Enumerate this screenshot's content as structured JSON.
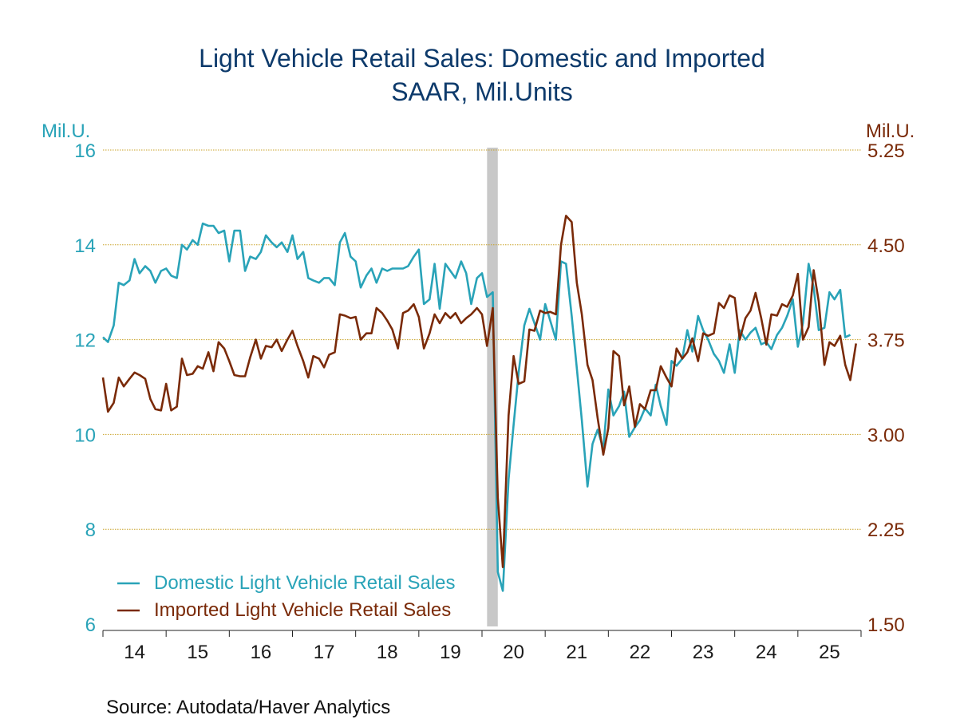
{
  "chart_data": {
    "type": "line",
    "title": "Light Vehicle Retail Sales: Domestic and Imported",
    "subtitle": "SAAR, Mil.Units",
    "left_axis": {
      "unit": "Mil.U.",
      "range": [
        6,
        16
      ],
      "ticks": [
        "6",
        "8",
        "10",
        "12",
        "14",
        "16"
      ]
    },
    "right_axis": {
      "unit": "Mil.U.",
      "range": [
        1.5,
        5.25
      ],
      "ticks": [
        "1.50",
        "2.25",
        "3.00",
        "3.75",
        "4.50",
        "5.25"
      ]
    },
    "x_axis": {
      "start": 2014,
      "end": 2026,
      "tick_labels": [
        "14",
        "15",
        "16",
        "17",
        "18",
        "19",
        "20",
        "21",
        "22",
        "23",
        "24",
        "25"
      ]
    },
    "grid": true,
    "recession_shading": [
      {
        "start": 2020.08,
        "end": 2020.25
      }
    ],
    "legend_position": "bottom-left",
    "series": [
      {
        "name": "Domestic Light Vehicle Retail Sales",
        "axis": "left",
        "color": "#29a3b8",
        "points": [
          [
            2014.0,
            12.05
          ],
          [
            2014.08,
            11.95
          ],
          [
            2014.17,
            12.3
          ],
          [
            2014.25,
            13.2
          ],
          [
            2014.33,
            13.15
          ],
          [
            2014.42,
            13.25
          ],
          [
            2014.5,
            13.7
          ],
          [
            2014.58,
            13.4
          ],
          [
            2014.67,
            13.55
          ],
          [
            2014.75,
            13.45
          ],
          [
            2014.83,
            13.2
          ],
          [
            2014.92,
            13.45
          ],
          [
            2015.0,
            13.5
          ],
          [
            2015.08,
            13.35
          ],
          [
            2015.17,
            13.3
          ],
          [
            2015.25,
            14.0
          ],
          [
            2015.33,
            13.9
          ],
          [
            2015.42,
            14.1
          ],
          [
            2015.5,
            14.0
          ],
          [
            2015.58,
            14.45
          ],
          [
            2015.67,
            14.4
          ],
          [
            2015.75,
            14.4
          ],
          [
            2015.83,
            14.25
          ],
          [
            2015.92,
            14.3
          ],
          [
            2016.0,
            13.65
          ],
          [
            2016.08,
            14.3
          ],
          [
            2016.17,
            14.3
          ],
          [
            2016.25,
            13.45
          ],
          [
            2016.33,
            13.75
          ],
          [
            2016.42,
            13.7
          ],
          [
            2016.5,
            13.85
          ],
          [
            2016.58,
            14.2
          ],
          [
            2016.67,
            14.05
          ],
          [
            2016.75,
            13.95
          ],
          [
            2016.83,
            14.05
          ],
          [
            2016.92,
            13.85
          ],
          [
            2017.0,
            14.2
          ],
          [
            2017.08,
            13.7
          ],
          [
            2017.17,
            13.85
          ],
          [
            2017.25,
            13.3
          ],
          [
            2017.33,
            13.25
          ],
          [
            2017.42,
            13.2
          ],
          [
            2017.5,
            13.3
          ],
          [
            2017.58,
            13.3
          ],
          [
            2017.67,
            13.15
          ],
          [
            2017.75,
            14.05
          ],
          [
            2017.83,
            14.25
          ],
          [
            2017.92,
            13.75
          ],
          [
            2018.0,
            13.65
          ],
          [
            2018.08,
            13.1
          ],
          [
            2018.17,
            13.35
          ],
          [
            2018.25,
            13.5
          ],
          [
            2018.33,
            13.2
          ],
          [
            2018.42,
            13.5
          ],
          [
            2018.5,
            13.45
          ],
          [
            2018.58,
            13.5
          ],
          [
            2018.67,
            13.5
          ],
          [
            2018.75,
            13.5
          ],
          [
            2018.83,
            13.55
          ],
          [
            2018.92,
            13.75
          ],
          [
            2019.0,
            13.9
          ],
          [
            2019.08,
            12.75
          ],
          [
            2019.17,
            12.85
          ],
          [
            2019.25,
            13.6
          ],
          [
            2019.33,
            12.65
          ],
          [
            2019.42,
            13.6
          ],
          [
            2019.5,
            13.45
          ],
          [
            2019.58,
            13.3
          ],
          [
            2019.67,
            13.65
          ],
          [
            2019.75,
            13.4
          ],
          [
            2019.83,
            12.75
          ],
          [
            2019.92,
            13.3
          ],
          [
            2020.0,
            13.4
          ],
          [
            2020.08,
            12.9
          ],
          [
            2020.17,
            13.0
          ],
          [
            2020.25,
            7.1
          ],
          [
            2020.33,
            6.7
          ],
          [
            2020.42,
            9.05
          ],
          [
            2020.5,
            10.2
          ],
          [
            2020.58,
            11.3
          ],
          [
            2020.67,
            12.3
          ],
          [
            2020.75,
            12.65
          ],
          [
            2020.83,
            12.35
          ],
          [
            2020.92,
            12.0
          ],
          [
            2021.0,
            12.75
          ],
          [
            2021.08,
            12.4
          ],
          [
            2021.17,
            12.0
          ],
          [
            2021.25,
            13.65
          ],
          [
            2021.33,
            13.6
          ],
          [
            2021.42,
            12.5
          ],
          [
            2021.5,
            11.4
          ],
          [
            2021.58,
            10.3
          ],
          [
            2021.67,
            8.9
          ],
          [
            2021.75,
            9.8
          ],
          [
            2021.83,
            10.1
          ],
          [
            2021.92,
            9.7
          ],
          [
            2022.0,
            10.95
          ],
          [
            2022.08,
            10.4
          ],
          [
            2022.17,
            10.6
          ],
          [
            2022.25,
            10.9
          ],
          [
            2022.33,
            9.95
          ],
          [
            2022.42,
            10.15
          ],
          [
            2022.5,
            10.3
          ],
          [
            2022.58,
            10.55
          ],
          [
            2022.67,
            10.4
          ],
          [
            2022.75,
            11.05
          ],
          [
            2022.83,
            10.6
          ],
          [
            2022.92,
            10.2
          ],
          [
            2023.0,
            11.55
          ],
          [
            2023.08,
            11.45
          ],
          [
            2023.17,
            11.6
          ],
          [
            2023.25,
            12.2
          ],
          [
            2023.33,
            11.75
          ],
          [
            2023.42,
            12.5
          ],
          [
            2023.5,
            12.2
          ],
          [
            2023.58,
            12.0
          ],
          [
            2023.67,
            11.7
          ],
          [
            2023.75,
            11.55
          ],
          [
            2023.83,
            11.3
          ],
          [
            2023.92,
            11.9
          ],
          [
            2024.0,
            11.3
          ],
          [
            2024.08,
            12.2
          ],
          [
            2024.17,
            12.0
          ],
          [
            2024.25,
            12.15
          ],
          [
            2024.33,
            12.25
          ],
          [
            2024.42,
            11.9
          ],
          [
            2024.5,
            11.95
          ],
          [
            2024.58,
            11.8
          ],
          [
            2024.67,
            12.1
          ],
          [
            2024.75,
            12.25
          ],
          [
            2024.83,
            12.5
          ],
          [
            2024.92,
            12.85
          ],
          [
            2025.0,
            11.85
          ],
          [
            2025.08,
            12.35
          ],
          [
            2025.17,
            13.6
          ],
          [
            2025.25,
            13.1
          ],
          [
            2025.33,
            12.2
          ],
          [
            2025.42,
            12.25
          ],
          [
            2025.5,
            13.0
          ],
          [
            2025.58,
            12.85
          ],
          [
            2025.67,
            13.05
          ],
          [
            2025.75,
            12.05
          ],
          [
            2025.83,
            12.1
          ]
        ]
      },
      {
        "name": "Imported Light Vehicle Retail Sales",
        "axis": "right",
        "color": "#7a2a08",
        "points": [
          [
            2014.0,
            3.45
          ],
          [
            2014.08,
            3.18
          ],
          [
            2014.17,
            3.25
          ],
          [
            2014.25,
            3.45
          ],
          [
            2014.33,
            3.38
          ],
          [
            2014.42,
            3.44
          ],
          [
            2014.5,
            3.49
          ],
          [
            2014.58,
            3.47
          ],
          [
            2014.67,
            3.44
          ],
          [
            2014.75,
            3.28
          ],
          [
            2014.83,
            3.2
          ],
          [
            2014.92,
            3.19
          ],
          [
            2015.0,
            3.4
          ],
          [
            2015.08,
            3.19
          ],
          [
            2015.17,
            3.22
          ],
          [
            2015.25,
            3.6
          ],
          [
            2015.33,
            3.47
          ],
          [
            2015.42,
            3.48
          ],
          [
            2015.5,
            3.54
          ],
          [
            2015.58,
            3.52
          ],
          [
            2015.67,
            3.65
          ],
          [
            2015.75,
            3.5
          ],
          [
            2015.83,
            3.73
          ],
          [
            2015.92,
            3.68
          ],
          [
            2016.0,
            3.58
          ],
          [
            2016.08,
            3.47
          ],
          [
            2016.17,
            3.46
          ],
          [
            2016.25,
            3.46
          ],
          [
            2016.33,
            3.61
          ],
          [
            2016.42,
            3.75
          ],
          [
            2016.5,
            3.6
          ],
          [
            2016.58,
            3.7
          ],
          [
            2016.67,
            3.69
          ],
          [
            2016.75,
            3.75
          ],
          [
            2016.83,
            3.66
          ],
          [
            2016.92,
            3.75
          ],
          [
            2017.0,
            3.82
          ],
          [
            2017.08,
            3.7
          ],
          [
            2017.17,
            3.58
          ],
          [
            2017.25,
            3.45
          ],
          [
            2017.33,
            3.62
          ],
          [
            2017.42,
            3.6
          ],
          [
            2017.5,
            3.53
          ],
          [
            2017.58,
            3.63
          ],
          [
            2017.67,
            3.65
          ],
          [
            2017.75,
            3.95
          ],
          [
            2017.83,
            3.94
          ],
          [
            2017.92,
            3.92
          ],
          [
            2018.0,
            3.93
          ],
          [
            2018.08,
            3.75
          ],
          [
            2018.17,
            3.8
          ],
          [
            2018.25,
            3.8
          ],
          [
            2018.33,
            4.0
          ],
          [
            2018.42,
            3.96
          ],
          [
            2018.5,
            3.9
          ],
          [
            2018.58,
            3.83
          ],
          [
            2018.67,
            3.68
          ],
          [
            2018.75,
            3.96
          ],
          [
            2018.83,
            3.98
          ],
          [
            2018.92,
            4.03
          ],
          [
            2019.0,
            3.93
          ],
          [
            2019.08,
            3.68
          ],
          [
            2019.17,
            3.8
          ],
          [
            2019.25,
            3.95
          ],
          [
            2019.33,
            3.88
          ],
          [
            2019.42,
            3.96
          ],
          [
            2019.5,
            3.92
          ],
          [
            2019.58,
            3.96
          ],
          [
            2019.67,
            3.88
          ],
          [
            2019.75,
            3.92
          ],
          [
            2019.83,
            3.95
          ],
          [
            2019.92,
            4.0
          ],
          [
            2020.0,
            3.95
          ],
          [
            2020.08,
            3.7
          ],
          [
            2020.17,
            4.0
          ],
          [
            2020.25,
            2.5
          ],
          [
            2020.33,
            1.95
          ],
          [
            2020.42,
            3.15
          ],
          [
            2020.5,
            3.62
          ],
          [
            2020.58,
            3.4
          ],
          [
            2020.67,
            3.42
          ],
          [
            2020.75,
            3.83
          ],
          [
            2020.83,
            3.82
          ],
          [
            2020.92,
            3.98
          ],
          [
            2021.0,
            3.96
          ],
          [
            2021.08,
            3.97
          ],
          [
            2021.17,
            3.95
          ],
          [
            2021.25,
            4.5
          ],
          [
            2021.33,
            4.73
          ],
          [
            2021.42,
            4.68
          ],
          [
            2021.5,
            4.2
          ],
          [
            2021.58,
            3.95
          ],
          [
            2021.67,
            3.55
          ],
          [
            2021.75,
            3.43
          ],
          [
            2021.83,
            3.13
          ],
          [
            2021.92,
            2.84
          ],
          [
            2022.0,
            3.05
          ],
          [
            2022.08,
            3.66
          ],
          [
            2022.17,
            3.62
          ],
          [
            2022.25,
            3.23
          ],
          [
            2022.33,
            3.38
          ],
          [
            2022.42,
            3.06
          ],
          [
            2022.5,
            3.24
          ],
          [
            2022.58,
            3.2
          ],
          [
            2022.67,
            3.35
          ],
          [
            2022.75,
            3.35
          ],
          [
            2022.83,
            3.54
          ],
          [
            2022.92,
            3.45
          ],
          [
            2023.0,
            3.38
          ],
          [
            2023.08,
            3.68
          ],
          [
            2023.17,
            3.6
          ],
          [
            2023.25,
            3.65
          ],
          [
            2023.33,
            3.76
          ],
          [
            2023.42,
            3.58
          ],
          [
            2023.5,
            3.8
          ],
          [
            2023.58,
            3.78
          ],
          [
            2023.67,
            3.8
          ],
          [
            2023.75,
            4.04
          ],
          [
            2023.83,
            4.0
          ],
          [
            2023.92,
            4.1
          ],
          [
            2024.0,
            4.08
          ],
          [
            2024.08,
            3.75
          ],
          [
            2024.17,
            3.92
          ],
          [
            2024.25,
            3.98
          ],
          [
            2024.33,
            4.12
          ],
          [
            2024.42,
            3.92
          ],
          [
            2024.5,
            3.71
          ],
          [
            2024.58,
            3.95
          ],
          [
            2024.67,
            3.94
          ],
          [
            2024.75,
            4.03
          ],
          [
            2024.83,
            4.01
          ],
          [
            2024.92,
            4.1
          ],
          [
            2025.0,
            4.27
          ],
          [
            2025.08,
            3.75
          ],
          [
            2025.17,
            3.85
          ],
          [
            2025.25,
            4.3
          ],
          [
            2025.33,
            4.05
          ],
          [
            2025.42,
            3.55
          ],
          [
            2025.5,
            3.73
          ],
          [
            2025.58,
            3.7
          ],
          [
            2025.67,
            3.78
          ],
          [
            2025.75,
            3.55
          ],
          [
            2025.83,
            3.43
          ],
          [
            2025.92,
            3.72
          ]
        ]
      }
    ],
    "source": "Source:  Autodata/Haver Analytics"
  }
}
